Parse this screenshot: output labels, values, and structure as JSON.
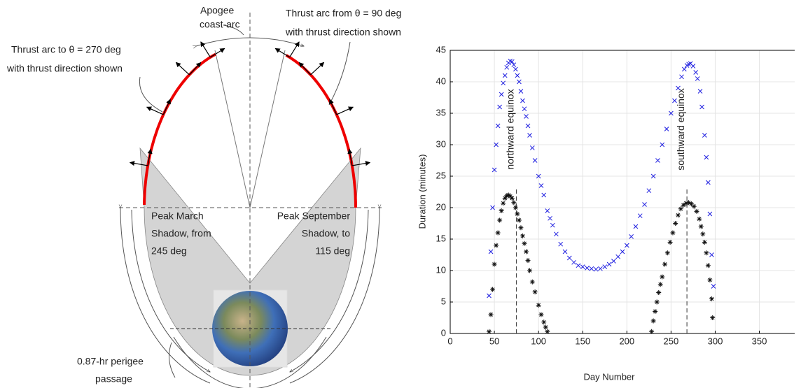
{
  "diagram": {
    "apogee_label": [
      "Apogee",
      "coast-arc"
    ],
    "thrust_from_label": [
      "Thrust arc from θ = 90 deg",
      "with thrust direction shown"
    ],
    "thrust_to_label": [
      "Thrust arc to θ = 270 deg",
      "with thrust direction shown"
    ],
    "march_label": [
      "Peak March",
      "Shadow, from",
      "245 deg"
    ],
    "september_label": [
      "Peak September",
      "Shadow, to",
      "115 deg"
    ],
    "perigee_label": [
      "0.87-hr perigee",
      "passage"
    ]
  },
  "chart_data": {
    "type": "scatter",
    "xlabel": "Day Number",
    "ylabel": "Duration (minutes)",
    "xlim": [
      0,
      390
    ],
    "ylim": [
      0,
      45
    ],
    "xticks": [
      0,
      50,
      100,
      150,
      200,
      250,
      300,
      350
    ],
    "yticks": [
      0,
      5,
      10,
      15,
      20,
      25,
      30,
      35,
      40,
      45
    ],
    "grid": true,
    "series": [
      {
        "color": "#1f1fe0",
        "marker": "x",
        "x": [
          44,
          46,
          48,
          50,
          52,
          54,
          56,
          58,
          60,
          62,
          64,
          66,
          68,
          70,
          72,
          74,
          76,
          78,
          80,
          82,
          84,
          86,
          88,
          90,
          93,
          96,
          100,
          103,
          106,
          110,
          113,
          116,
          120,
          125,
          130,
          135,
          140,
          145,
          150,
          155,
          160,
          165,
          170,
          175,
          180,
          185,
          190,
          195,
          200,
          205,
          210,
          215,
          220,
          225,
          230,
          235,
          240,
          245,
          250,
          254,
          258,
          262,
          265,
          268,
          270,
          272,
          275,
          278,
          280,
          283,
          285,
          288,
          290,
          292,
          294,
          296,
          298
        ],
        "values": [
          6,
          13,
          20,
          26,
          30,
          33,
          36,
          38,
          39.8,
          41,
          42.3,
          43,
          43.3,
          43.2,
          42.7,
          42,
          41,
          40,
          38.5,
          37,
          35.7,
          34.5,
          33,
          31.5,
          29.5,
          27.5,
          25,
          23.5,
          22,
          19.5,
          18.3,
          17.2,
          15.8,
          14.2,
          13,
          12,
          11.3,
          10.8,
          10.6,
          10.4,
          10.3,
          10.2,
          10.3,
          10.6,
          11,
          11.5,
          12.2,
          13,
          14,
          15.4,
          17,
          18.7,
          20.5,
          22.7,
          25,
          27.5,
          30,
          32.5,
          35,
          37,
          39,
          40.8,
          42,
          42.6,
          42.8,
          42.9,
          42.5,
          41.5,
          40.5,
          38.5,
          36,
          31.5,
          28,
          24,
          19,
          12.5,
          7.5
        ]
      },
      {
        "color": "#111111",
        "marker": "asterisk",
        "x": [
          44,
          46,
          48,
          50,
          52,
          54,
          56,
          58,
          60,
          62,
          64,
          66,
          68,
          70,
          72,
          74,
          76,
          78,
          80,
          82,
          84,
          86,
          88,
          90,
          93,
          96,
          100,
          103,
          106,
          108,
          110,
          228,
          230,
          232,
          234,
          236,
          238,
          240,
          243,
          246,
          249,
          252,
          255,
          258,
          261,
          264,
          267,
          270,
          273,
          276,
          279,
          282,
          284,
          286,
          288,
          290,
          292,
          294,
          296,
          297
        ],
        "values": [
          0.3,
          3,
          7,
          11,
          14,
          16,
          18,
          19.5,
          20.7,
          21.5,
          21.9,
          22,
          21.8,
          21.5,
          20.8,
          20,
          19,
          18,
          16.8,
          15.5,
          14.3,
          13,
          11.6,
          10,
          8.2,
          6.6,
          4.5,
          3,
          1.8,
          1,
          0.3,
          0.3,
          2,
          3.5,
          5,
          6.5,
          7.8,
          9,
          11,
          12.8,
          14.5,
          16,
          17.5,
          18.8,
          19.8,
          20.4,
          20.7,
          20.8,
          20.6,
          20.2,
          19.4,
          18.2,
          17,
          15.8,
          14.5,
          12.8,
          10.8,
          8.5,
          5.5,
          2.5
        ]
      }
    ],
    "annotations": [
      {
        "text": "northward equinox",
        "x": 75
      },
      {
        "text": "southward equinox",
        "x": 268
      }
    ]
  }
}
